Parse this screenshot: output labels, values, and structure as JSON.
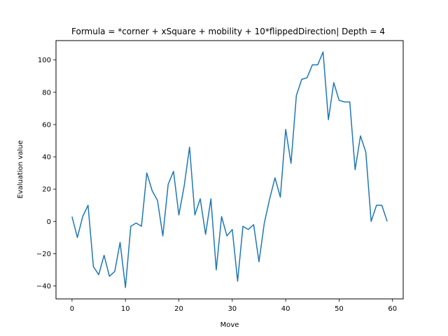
{
  "chart_data": {
    "type": "line",
    "title": "Formula = *corner + xSquare + mobility + 10*flippedDirection| Depth = 4",
    "xlabel": "Move",
    "ylabel": "Evaluation value",
    "xlim": [
      -3,
      62
    ],
    "ylim": [
      -48,
      112
    ],
    "xticks": [
      0,
      10,
      20,
      30,
      40,
      50,
      60
    ],
    "yticks": [
      -40,
      -20,
      0,
      20,
      40,
      60,
      80,
      100
    ],
    "xtick_labels": [
      "0",
      "10",
      "20",
      "30",
      "40",
      "50",
      "60"
    ],
    "ytick_labels": [
      "−40",
      "−20",
      "0",
      "20",
      "40",
      "60",
      "80",
      "100"
    ],
    "grid": false,
    "legend": false,
    "line_color": "#1f77b4",
    "series": [
      {
        "x": [
          0,
          1,
          2,
          3,
          4,
          5,
          6,
          7,
          8,
          9,
          10,
          11,
          12,
          13,
          14,
          15,
          16,
          17,
          18,
          19,
          20,
          21,
          22,
          23,
          24,
          25,
          26,
          27,
          28,
          29,
          30,
          31,
          32,
          33,
          34,
          35,
          36,
          37,
          38,
          39,
          40,
          41,
          42,
          43,
          44,
          45,
          46,
          47,
          48,
          49,
          50,
          51,
          52,
          53,
          54,
          55,
          56,
          57,
          58,
          59
        ],
        "values": [
          3,
          -10,
          3,
          10,
          -28,
          -33,
          -21,
          -34,
          -31,
          -13,
          -41,
          -3,
          -1,
          -3,
          30,
          19,
          13,
          -9,
          23,
          31,
          4,
          22,
          46,
          4,
          14,
          -8,
          14,
          -30,
          3,
          -9,
          -5,
          -37,
          -3,
          -5,
          -2,
          -25,
          -1,
          14,
          27,
          15,
          57,
          36,
          78,
          88,
          89,
          97,
          97,
          105,
          63,
          86,
          75,
          74,
          74,
          32,
          53,
          43,
          0,
          10,
          10,
          0
        ]
      }
    ]
  }
}
